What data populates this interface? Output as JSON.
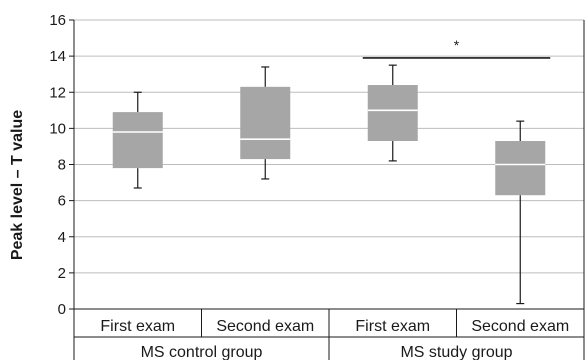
{
  "chart_data": {
    "type": "boxplot",
    "ylabel": "Peak level – T value",
    "ylim": [
      0,
      16
    ],
    "yticks": [
      "0",
      "2",
      "4",
      "6",
      "8",
      "10",
      "12",
      "14",
      "16"
    ],
    "grid": true,
    "categories": [
      "First exam",
      "Second exam",
      "First exam",
      "Second exam"
    ],
    "groups": [
      {
        "label": "MS control group",
        "categories": [
          "First exam",
          "Second exam"
        ]
      },
      {
        "label": "MS study group",
        "categories": [
          "First exam",
          "Second exam"
        ]
      }
    ],
    "boxes": [
      {
        "category": "First exam",
        "group": "MS control group",
        "min": 6.7,
        "q1": 7.8,
        "median": 9.8,
        "q3": 10.9,
        "max": 12.0
      },
      {
        "category": "Second exam",
        "group": "MS control group",
        "min": 7.2,
        "q1": 8.3,
        "median": 9.4,
        "q3": 12.3,
        "max": 13.4
      },
      {
        "category": "First exam",
        "group": "MS study group",
        "min": 8.2,
        "q1": 9.3,
        "median": 11.0,
        "q3": 12.4,
        "max": 13.5
      },
      {
        "category": "Second exam",
        "group": "MS study group",
        "min": 0.3,
        "q1": 6.3,
        "median": 8.0,
        "q3": 9.3,
        "max": 10.4
      }
    ],
    "significance": {
      "from_box": 2,
      "to_box": 3,
      "y": 13.9,
      "label": "*"
    },
    "colors": {
      "box_fill": "#a6a6a6",
      "median_line": "#ffffff",
      "grid": "#bdbdbd",
      "axis": "#1a1a1a"
    }
  }
}
